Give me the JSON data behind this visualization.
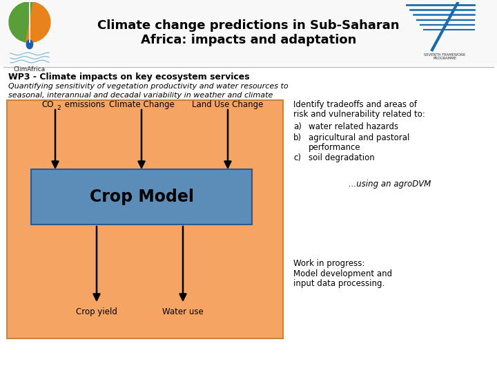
{
  "title_line1": "Climate change predictions in Sub-Saharan",
  "title_line2": "Africa: impacts and adaptation",
  "wp_title": "WP3 - Climate impacts on key ecosystem services",
  "wp_subtitle_line1": "Quantifying sensitivity of vegetation productivity and water resources to",
  "wp_subtitle_line2": "seasonal, interannual and decadal variability in weather and climate",
  "model_label": "Crop Model",
  "outputs": [
    "Crop yield",
    "Water use"
  ],
  "bg_color": "#FFFFFF",
  "box_outer_color": "#F5A464",
  "box_inner_color": "#5B8DB8",
  "header_line_color": "#BBBBBB",
  "title_fontsize": 13,
  "wp_title_fontsize": 9,
  "wp_subtitle_fontsize": 8,
  "body_fontsize": 8.5,
  "model_fontsize": 17
}
